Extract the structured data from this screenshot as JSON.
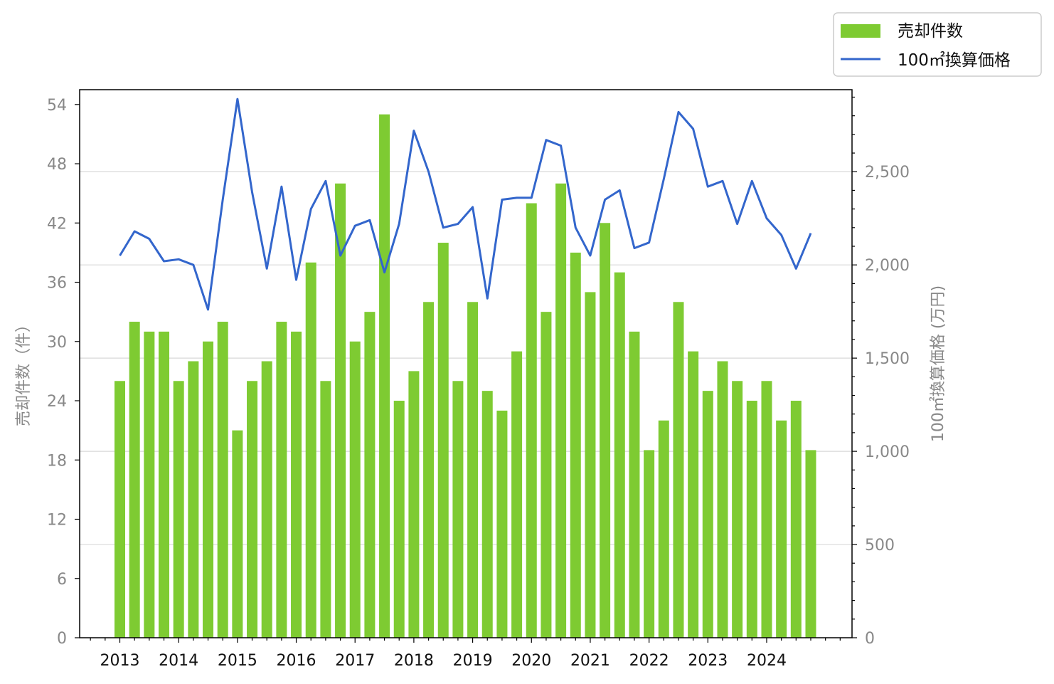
{
  "chart_data": {
    "type": "bar",
    "x_ticks": [
      "2013",
      "2014",
      "2015",
      "2016",
      "2017",
      "2018",
      "2019",
      "2020",
      "2021",
      "2022",
      "2023",
      "2024"
    ],
    "ylabel_left": "売却件数（件）",
    "ylabel_right": "100㎡換算価格 (万円)",
    "left_ylim": [
      0,
      55.5
    ],
    "left_yticks": [
      0,
      6,
      12,
      18,
      24,
      30,
      36,
      42,
      48,
      54
    ],
    "right_ylim": [
      0,
      2940
    ],
    "right_yticks": [
      0,
      500,
      1000,
      1500,
      2000,
      2500
    ],
    "right_ytick_labels": [
      "0",
      "500",
      "1,000",
      "1,500",
      "2,000",
      "2,500"
    ],
    "grid": "horizontal (right axis)",
    "legend_position": "top-right outside",
    "series": [
      {
        "name": "売却件数",
        "type": "bar",
        "axis": "left",
        "color": "#7ecb32",
        "values": [
          26,
          32,
          31,
          31,
          26,
          28,
          30,
          32,
          21,
          26,
          28,
          32,
          31,
          38,
          26,
          46,
          30,
          33,
          53,
          24,
          27,
          34,
          40,
          26,
          34,
          25,
          23,
          29,
          44,
          33,
          46,
          39,
          35,
          42,
          37,
          31,
          19,
          22,
          34,
          29,
          25,
          28,
          26,
          24,
          26,
          22,
          24,
          19
        ]
      },
      {
        "name": "100㎡換算価格",
        "type": "line",
        "axis": "right",
        "color": "#3366cc",
        "values": [
          2050,
          2180,
          2140,
          2020,
          2030,
          2000,
          1760,
          2350,
          2890,
          2390,
          1980,
          2420,
          1920,
          2300,
          2450,
          2050,
          2210,
          2240,
          1960,
          2220,
          2720,
          2500,
          2200,
          2220,
          2310,
          1820,
          2350,
          2360,
          2360,
          2670,
          2640,
          2200,
          2050,
          2350,
          2400,
          2090,
          2120,
          2460,
          2820,
          2730,
          2420,
          2450,
          2220,
          2450,
          2250,
          2160,
          1980,
          2170
        ]
      }
    ]
  }
}
